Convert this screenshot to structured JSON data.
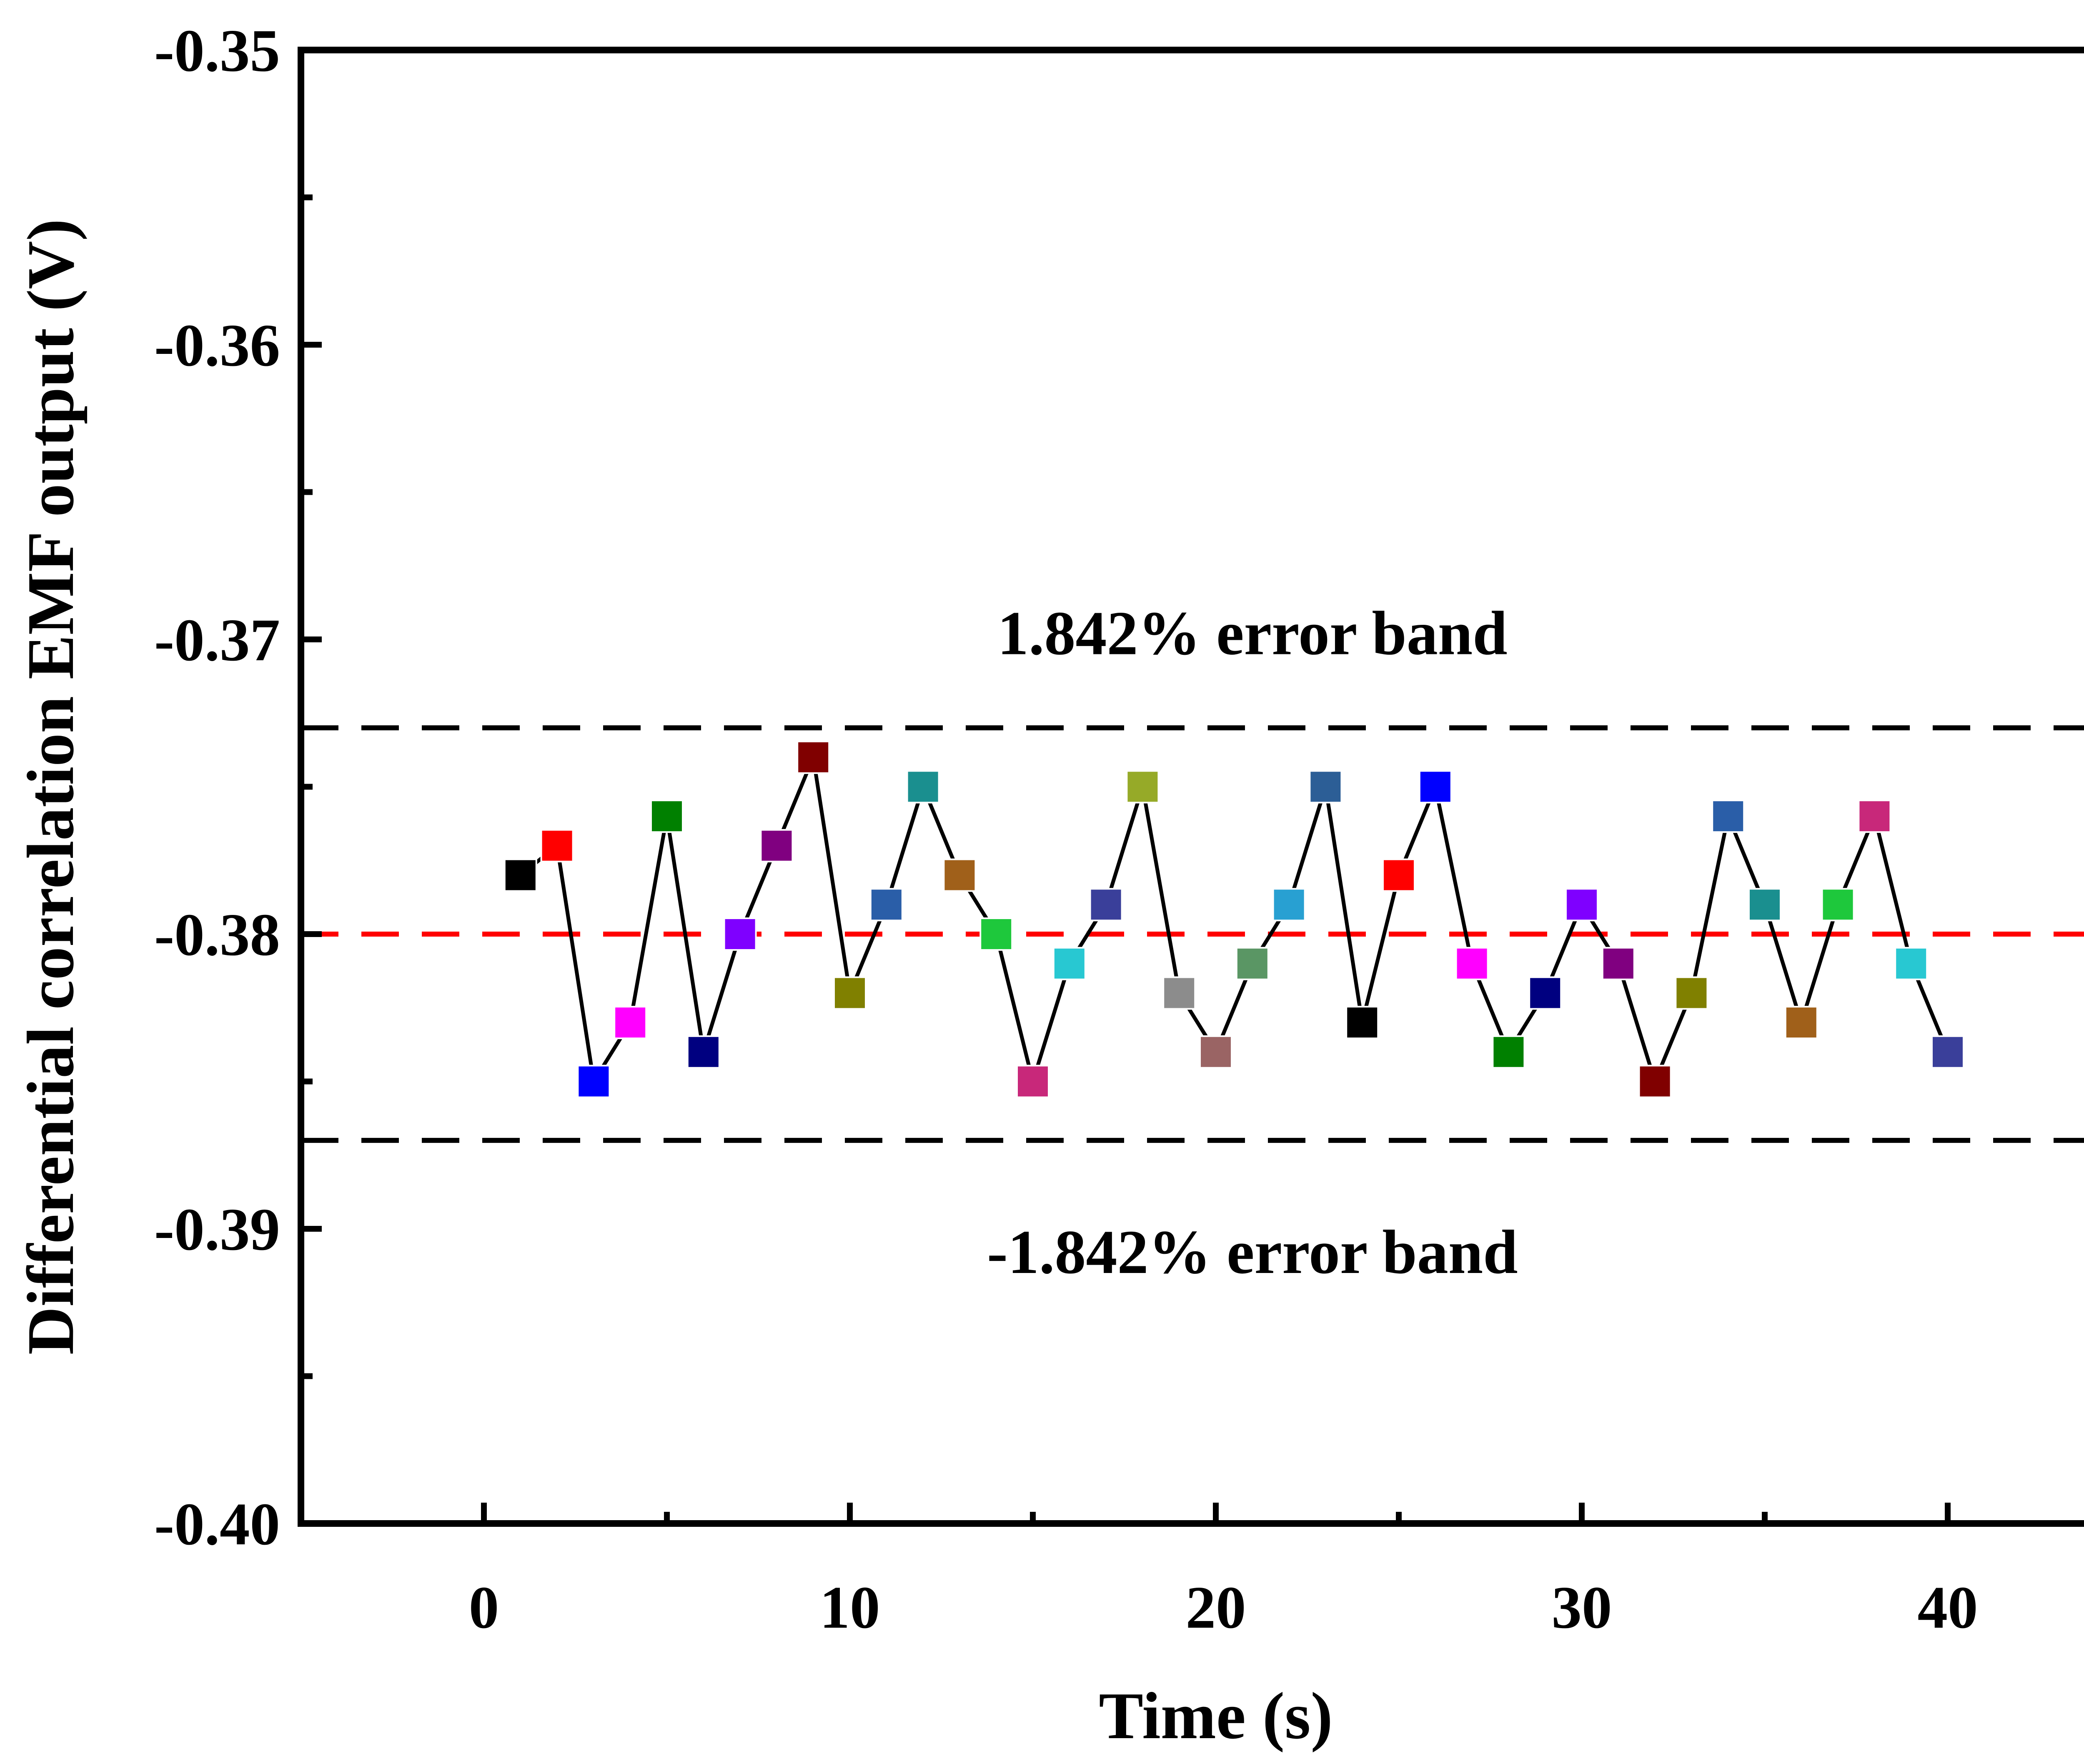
{
  "chart_data": {
    "type": "scatter",
    "title": "",
    "xlabel": "Time (s)",
    "ylabel": "Differential correlation EMF output (V)",
    "xlim": [
      -5,
      45
    ],
    "ylim": [
      -0.4,
      -0.35
    ],
    "x_ticks": [
      0,
      10,
      20,
      30,
      40
    ],
    "x_tick_labels": [
      "0",
      "10",
      "20",
      "30",
      "40"
    ],
    "y_ticks": [
      -0.4,
      -0.39,
      -0.38,
      -0.37,
      -0.36,
      -0.35
    ],
    "y_tick_labels": [
      "-0.40",
      "-0.39",
      "-0.38",
      "-0.37",
      "-0.36",
      "-0.35"
    ],
    "grid": false,
    "series": [
      {
        "name": "EMF output",
        "x": [
          1,
          2,
          3,
          4,
          5,
          6,
          7,
          8,
          9,
          10,
          11,
          12,
          13,
          14,
          15,
          16,
          17,
          18,
          19,
          20,
          21,
          22,
          23,
          24,
          25,
          26,
          27,
          28,
          29,
          30,
          31,
          32,
          33,
          34,
          35,
          36,
          37,
          38,
          39,
          40
        ],
        "y": [
          -0.378,
          -0.377,
          -0.385,
          -0.383,
          -0.376,
          -0.384,
          -0.38,
          -0.377,
          -0.374,
          -0.382,
          -0.379,
          -0.375,
          -0.378,
          -0.38,
          -0.385,
          -0.381,
          -0.379,
          -0.375,
          -0.382,
          -0.384,
          -0.381,
          -0.379,
          -0.375,
          -0.383,
          -0.378,
          -0.375,
          -0.381,
          -0.384,
          -0.382,
          -0.379,
          -0.381,
          -0.385,
          -0.382,
          -0.376,
          -0.379,
          -0.383,
          -0.379,
          -0.376,
          -0.381,
          -0.384
        ],
        "marker_colors": [
          "#000000",
          "#ff0000",
          "#0000ff",
          "#ff00ff",
          "#008000",
          "#000080",
          "#7f00ff",
          "#800080",
          "#800000",
          "#808000",
          "#2a5ea8",
          "#1a8f8f",
          "#a0601a",
          "#1ec83c",
          "#c8287a",
          "#28c8d2",
          "#3a3f9a",
          "#96aa28",
          "#8c8c8c",
          "#9a6464",
          "#5a9664",
          "#28a0d2",
          "#2c5e96",
          "#000000",
          "#ff0000",
          "#0000ff",
          "#ff00ff",
          "#008000",
          "#000080",
          "#7f00ff",
          "#800080",
          "#800000",
          "#808000",
          "#2a5ea8",
          "#1a8f8f",
          "#a0601a",
          "#1ec83c",
          "#c8287a",
          "#28c8d2",
          "#3a3f9a"
        ],
        "line_color": "#000000"
      }
    ],
    "reference_lines": [
      {
        "name": "mean",
        "y": -0.38,
        "color": "#ff0000",
        "style": "dashed"
      },
      {
        "name": "upper-error-band",
        "y": -0.373,
        "color": "#000000",
        "style": "dashed"
      },
      {
        "name": "lower-error-band",
        "y": -0.387,
        "color": "#000000",
        "style": "dashed"
      }
    ],
    "annotations": [
      {
        "text": "1.842% error band",
        "x": 21,
        "y": -0.3705
      },
      {
        "text": "-1.842% error band",
        "x": 21,
        "y": -0.3915
      }
    ]
  }
}
